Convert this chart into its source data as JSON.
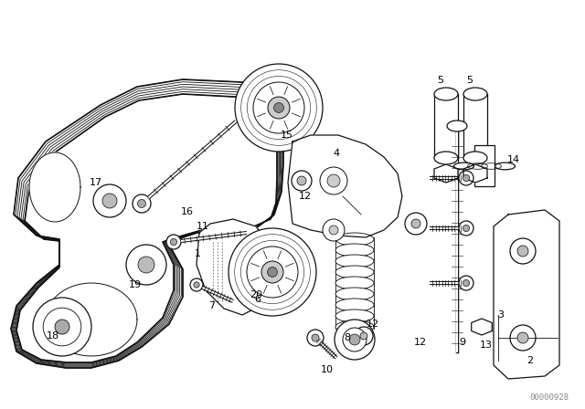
{
  "background_color": "#ffffff",
  "fig_width": 6.4,
  "fig_height": 4.48,
  "dpi": 100,
  "watermark": "00000928",
  "line_color": "#111111",
  "text_color": "#000000",
  "label_fontsize": 8.0,
  "belt_thickness": 0.018,
  "belt_ribs": 7
}
